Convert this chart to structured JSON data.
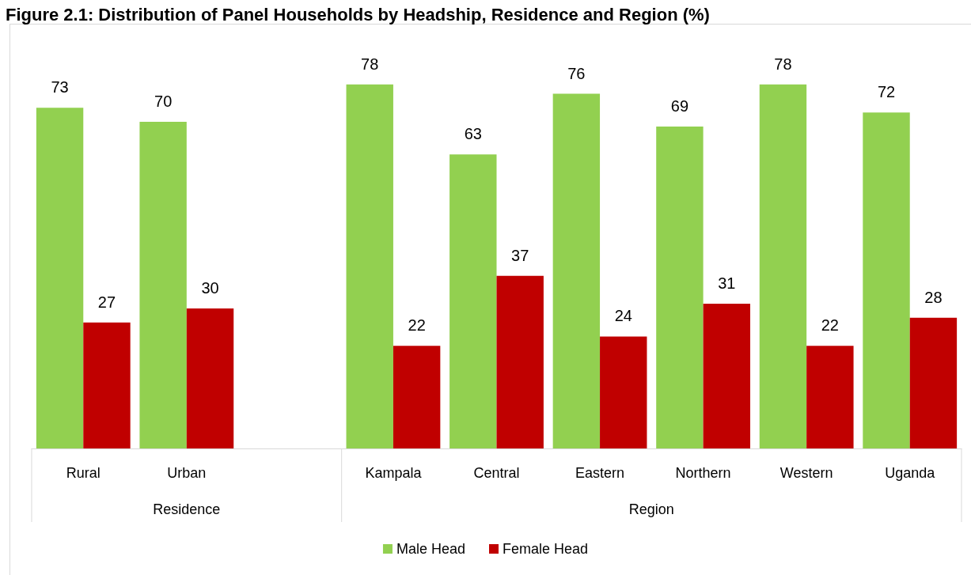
{
  "chart_data": {
    "type": "bar",
    "title": "Figure 2.1: Distribution of Panel Households by Headship, Residence and Region (%)",
    "categories": [
      "Rural",
      "Urban",
      null,
      "Kampala",
      "Central",
      "Eastern",
      "Northern",
      "Western",
      "Uganda"
    ],
    "series": [
      {
        "name": "Male Head",
        "color": "#92d050",
        "values": [
          73,
          70,
          null,
          78,
          63,
          76,
          69,
          78,
          72
        ]
      },
      {
        "name": "Female Head",
        "color": "#c00000",
        "values": [
          27,
          30,
          null,
          22,
          37,
          24,
          31,
          22,
          28
        ]
      }
    ],
    "annotations": [
      "Residence",
      "Region"
    ],
    "data_labels": true,
    "legend": "bottom",
    "tick_labels": "x"
  }
}
